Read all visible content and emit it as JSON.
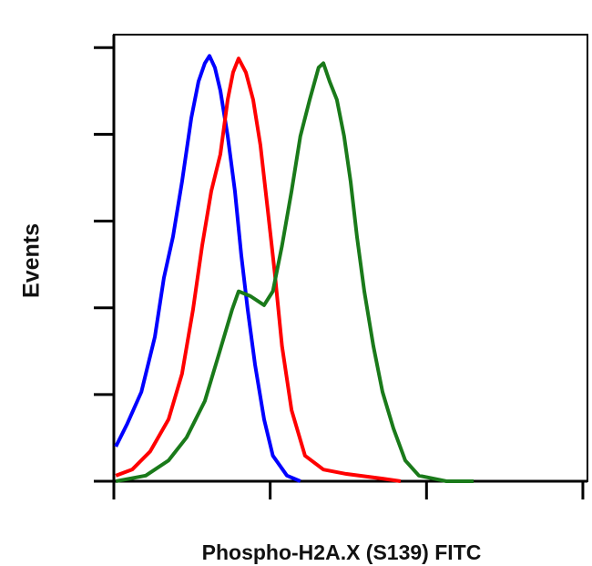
{
  "chart_data": {
    "type": "line",
    "x_label": "Phospho-H2A.X (S139) FITC",
    "y_label": "Events",
    "x_scale": "log",
    "xlim": [
      1,
      1070
    ],
    "xticks": [
      1,
      10,
      100,
      1000
    ],
    "ylim": [
      0,
      103
    ],
    "yticks": [
      0,
      20,
      40,
      60,
      80,
      100
    ],
    "series": [
      {
        "color": "#0000ff",
        "x": [
          1.03,
          1.22,
          1.5,
          1.83,
          2.09,
          2.39,
          2.73,
          3.13,
          3.48,
          3.82,
          4.09,
          4.43,
          4.8,
          5.35,
          5.95,
          6.53,
          7.18,
          8.0,
          9.14,
          10.4,
          12.8,
          15.6
        ],
        "values": [
          8.0,
          13.3,
          20.6,
          33.3,
          46.9,
          56.4,
          69.1,
          83.8,
          92.2,
          96.4,
          98.1,
          95.4,
          90.1,
          79.6,
          66.9,
          52.2,
          39.6,
          26.9,
          14.3,
          5.9,
          1.3,
          0
        ]
      },
      {
        "color": "#ff0000",
        "x": [
          1.03,
          1.31,
          1.71,
          2.24,
          2.73,
          3.21,
          3.67,
          4.2,
          4.8,
          5.35,
          5.79,
          6.28,
          6.99,
          7.78,
          8.66,
          9.64,
          10.7,
          11.9,
          13.7,
          16.7,
          21.9,
          30.5,
          52.3,
          68.3
        ],
        "values": [
          1.3,
          2.7,
          6.9,
          14.3,
          24.8,
          39.6,
          54.3,
          66.9,
          75.4,
          88.0,
          94.3,
          97.5,
          94.3,
          88.0,
          77.5,
          62.7,
          48.0,
          31.2,
          16.4,
          5.9,
          2.7,
          1.7,
          0.6,
          0
        ]
      },
      {
        "color": "#1a7a1a",
        "x": [
          1.03,
          1.6,
          2.24,
          2.92,
          3.82,
          4.68,
          5.71,
          6.28,
          7.47,
          9.14,
          10.4,
          11.9,
          13.7,
          15.6,
          17.9,
          20.4,
          21.9,
          24.0,
          26.7,
          29.7,
          32.7,
          35.9,
          40.0,
          45.7,
          52.3,
          61.4,
          73.1,
          89.3,
          134,
          200
        ],
        "values": [
          0,
          1.3,
          4.8,
          10.1,
          18.5,
          29.1,
          39.6,
          43.8,
          42.7,
          40.6,
          43.8,
          54.3,
          66.9,
          79.6,
          88.0,
          95.4,
          96.4,
          92.2,
          88.0,
          79.6,
          69.1,
          56.4,
          43.8,
          31.2,
          20.6,
          12.2,
          4.8,
          1.3,
          0,
          0
        ]
      }
    ]
  }
}
